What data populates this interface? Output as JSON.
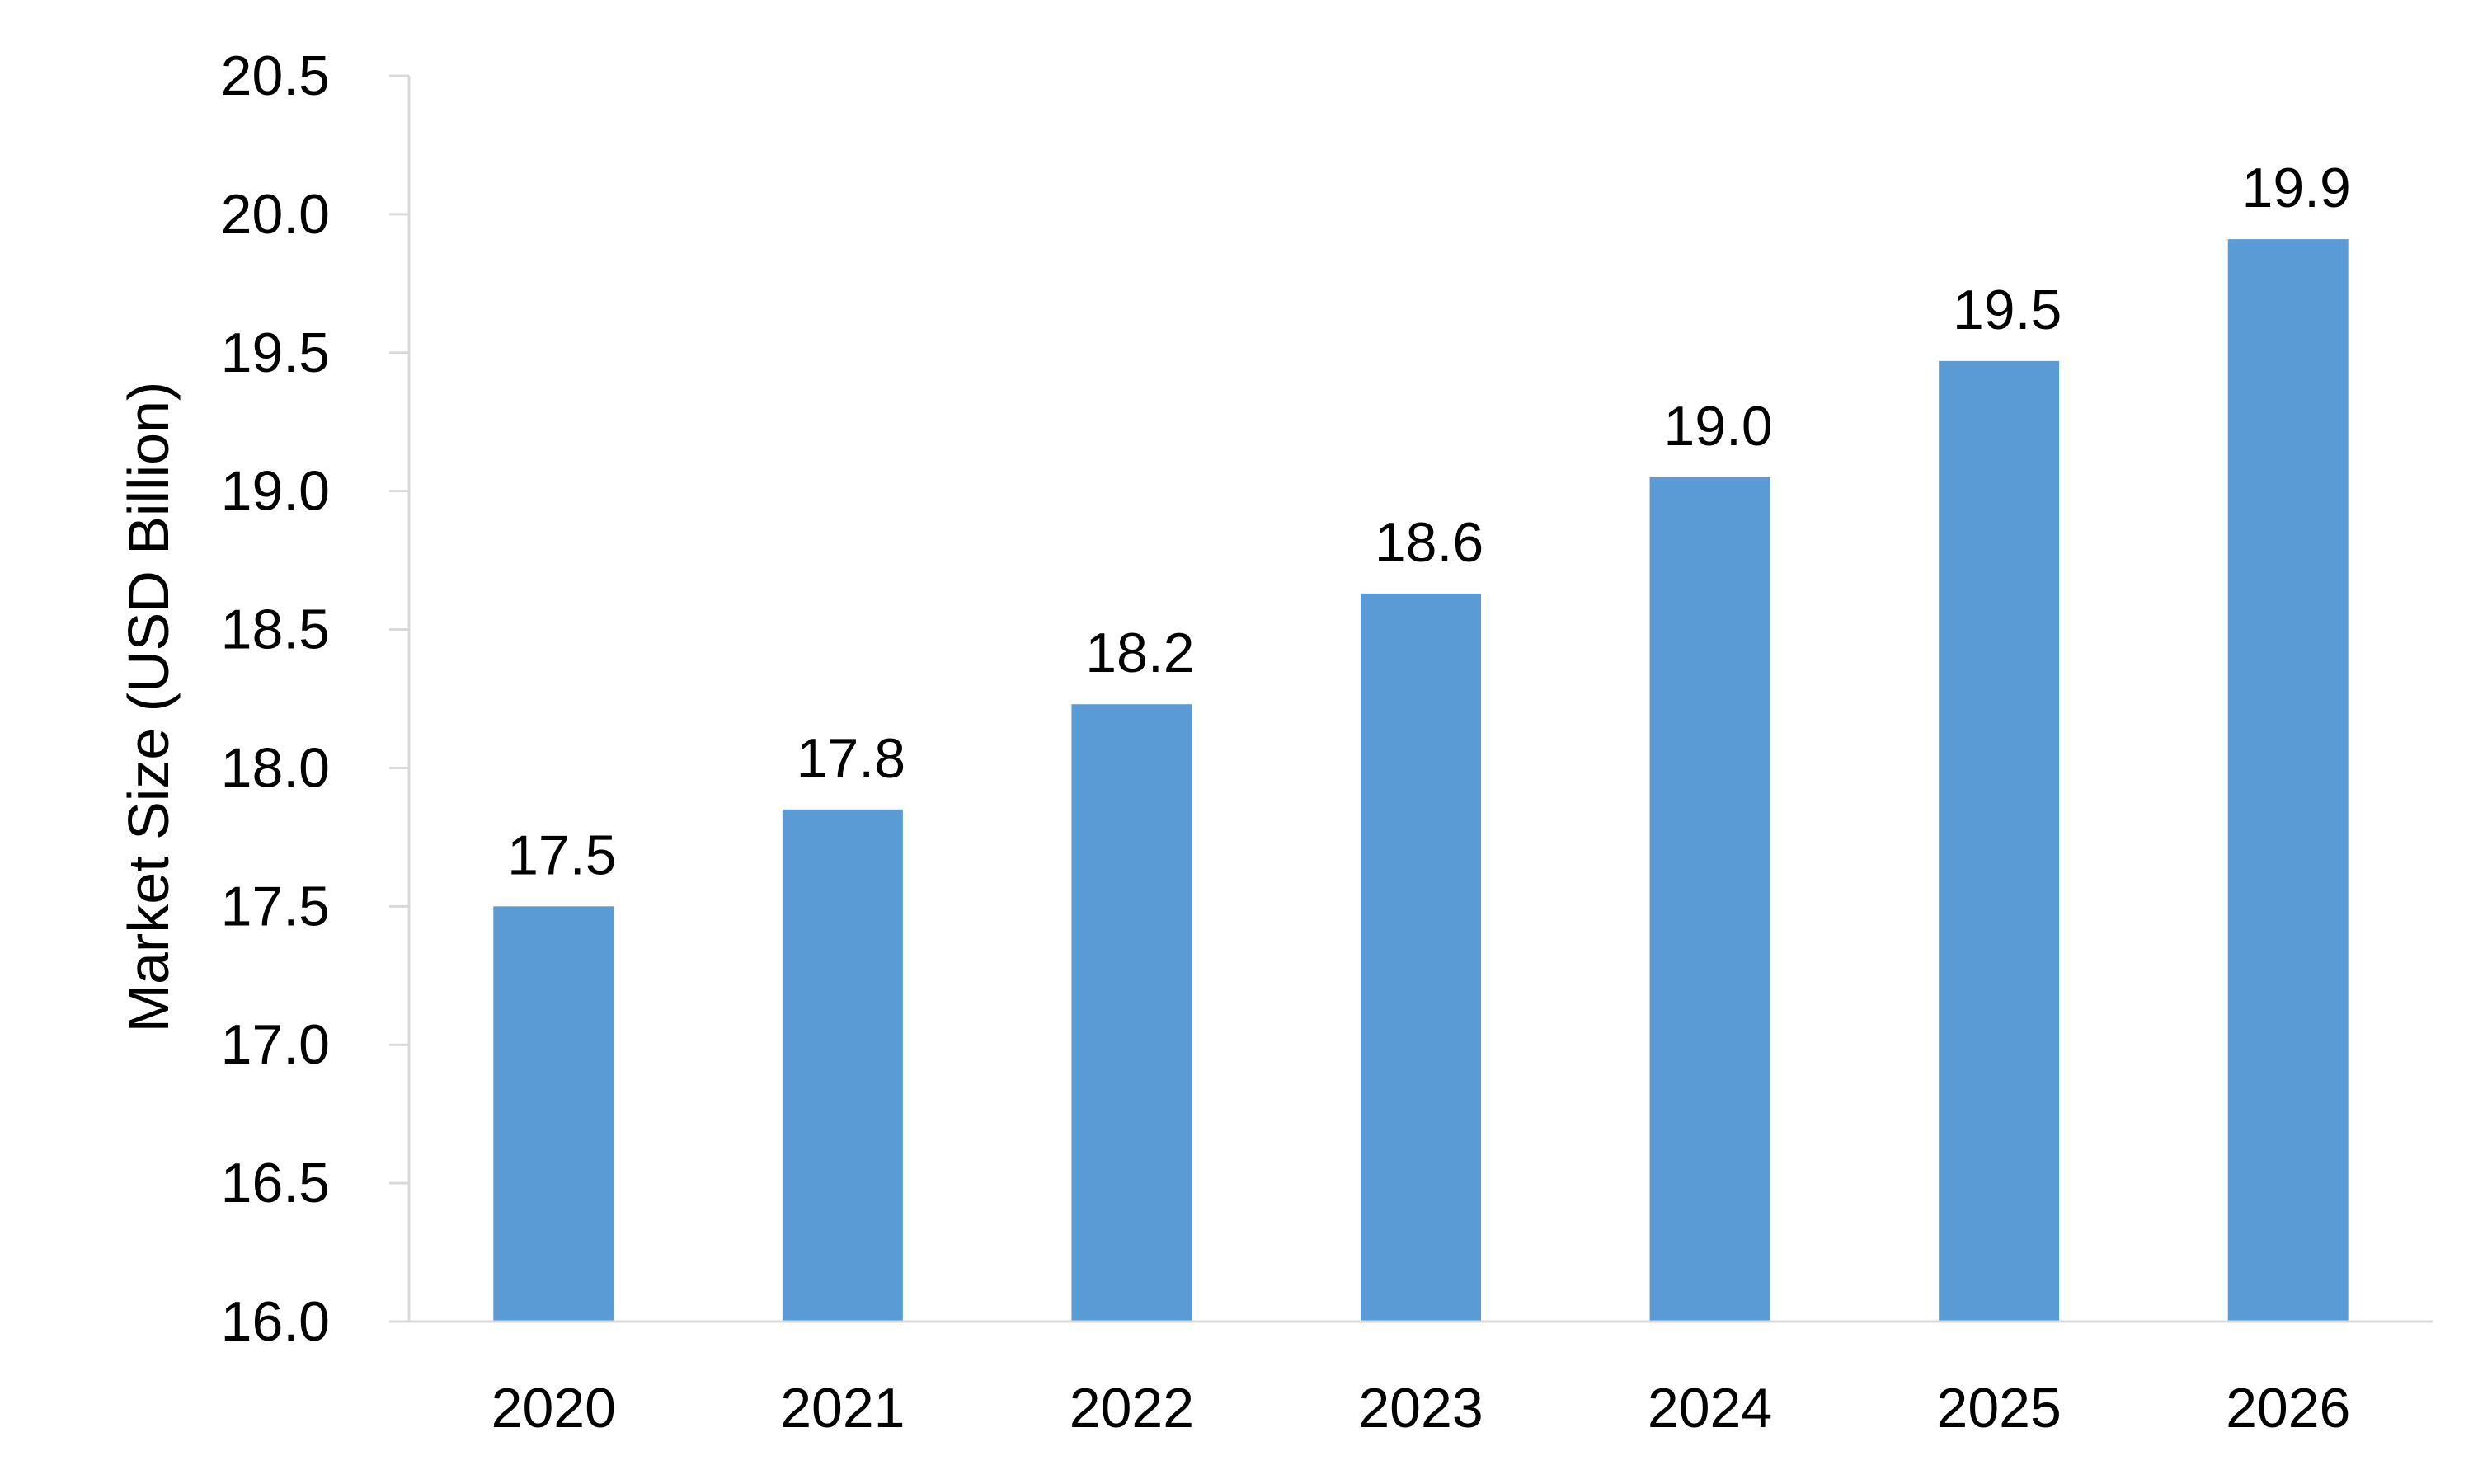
{
  "chart_data": {
    "type": "bar",
    "title": "",
    "xlabel": "",
    "ylabel": "Market Size (USD Billion)",
    "categories": [
      "2020",
      "2021",
      "2022",
      "2023",
      "2024",
      "2025",
      "2026"
    ],
    "values": [
      17.5,
      17.85,
      18.23,
      18.63,
      19.05,
      19.47,
      19.91
    ],
    "data_labels": [
      "17.5",
      "17.8",
      "18.2",
      "18.6",
      "19.0",
      "19.5",
      "19.9"
    ],
    "ylim": [
      16.0,
      20.5
    ],
    "y_ticks": [
      16.0,
      16.5,
      17.0,
      17.5,
      18.0,
      18.5,
      19.0,
      19.5,
      20.0,
      20.5
    ],
    "y_tick_labels": [
      "16.0",
      "16.5",
      "17.0",
      "17.5",
      "18.0",
      "18.5",
      "19.0",
      "19.5",
      "20.0",
      "20.5"
    ],
    "bar_color": "#5b9bd5",
    "grid": false,
    "legend": "none"
  }
}
